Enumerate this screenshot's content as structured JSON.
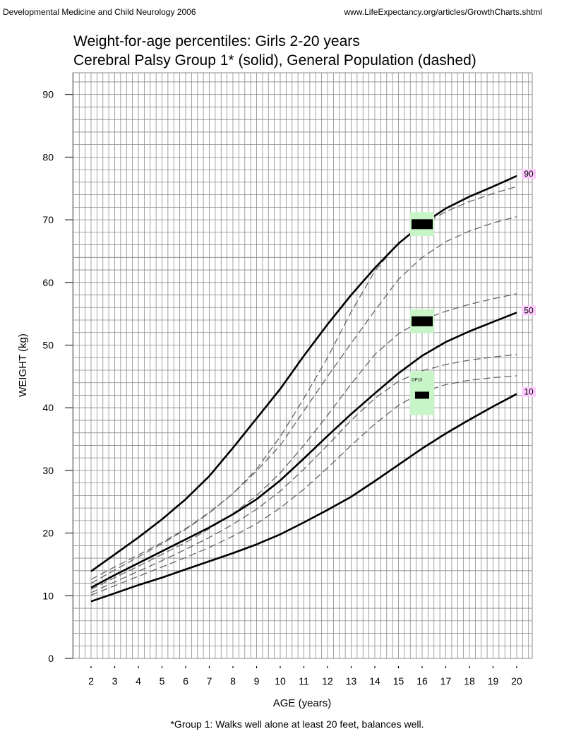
{
  "header": {
    "left": "Developmental Medicine and Child Neurology 2006",
    "right": "www.LifeExpectancy.org/articles/GrowthCharts.shtml"
  },
  "footnote": "*Group 1: Walks well alone at least 20 feet, balances well.",
  "chart_data": {
    "type": "line",
    "title": "Weight-for-age percentiles: Girls 2-20 years",
    "subtitle": "Cerebral Palsy Group 1* (solid), General Population (dashed)",
    "xlabel": "AGE (years)",
    "ylabel": "WEIGHT (kg)",
    "xlim": [
      2,
      20
    ],
    "ylim": [
      0,
      90
    ],
    "xticks": [
      2,
      3,
      4,
      5,
      6,
      7,
      8,
      9,
      10,
      11,
      12,
      13,
      14,
      15,
      16,
      17,
      18,
      19,
      20
    ],
    "yticks": [
      0,
      10,
      20,
      30,
      40,
      50,
      60,
      70,
      80,
      90
    ],
    "grid": true,
    "x": [
      2,
      3,
      4,
      5,
      6,
      7,
      8,
      9,
      10,
      11,
      12,
      13,
      14,
      15,
      16,
      17,
      18,
      19,
      20
    ],
    "series": [
      {
        "group": "Cerebral Palsy Group 1",
        "percentile": "90",
        "style": "solid",
        "values": [
          13.9,
          16.6,
          19.3,
          22.2,
          25.4,
          29.1,
          33.6,
          38.3,
          43.0,
          48.3,
          53.3,
          58.0,
          62.3,
          66.2,
          69.3,
          71.8,
          73.7,
          75.3,
          77.0
        ]
      },
      {
        "group": "Cerebral Palsy Group 1",
        "percentile": "50",
        "style": "solid",
        "values": [
          11.3,
          13.3,
          15.2,
          17.1,
          19.0,
          20.9,
          23.0,
          25.4,
          28.4,
          31.9,
          35.5,
          39.0,
          42.3,
          45.5,
          48.3,
          50.5,
          52.2,
          53.7,
          55.2
        ]
      },
      {
        "group": "Cerebral Palsy Group 1",
        "percentile": "10",
        "style": "solid",
        "values": [
          9.1,
          10.4,
          11.7,
          12.9,
          14.2,
          15.5,
          16.8,
          18.2,
          19.8,
          21.7,
          23.7,
          25.8,
          28.3,
          30.9,
          33.5,
          35.9,
          38.1,
          40.2,
          42.2
        ]
      },
      {
        "group": "General Population",
        "percentile": "90",
        "style": "dashed",
        "values": [
          12.6,
          14.6,
          16.5,
          18.5,
          20.7,
          23.3,
          26.3,
          29.9,
          34.0,
          39.5,
          45.0,
          50.3,
          55.5,
          60.5,
          64.0,
          66.5,
          68.2,
          69.5,
          70.5
        ]
      },
      {
        "group": "General Population",
        "percentile": "50",
        "style": "dashed",
        "values": [
          12.0,
          14.1,
          16.2,
          18.3,
          20.6,
          23.2,
          26.3,
          30.2,
          35.4,
          41.5,
          48.0,
          55.3,
          61.8,
          66.3,
          69.1,
          71.3,
          72.9,
          74.2,
          75.3
        ]
      },
      {
        "group": "General Population",
        "percentile": "dashed-3",
        "style": "dashed",
        "values": [
          11.0,
          12.9,
          14.7,
          16.6,
          18.5,
          20.7,
          23.1,
          26.0,
          29.6,
          34.0,
          38.8,
          43.8,
          48.5,
          51.8,
          54.0,
          55.4,
          56.5,
          57.4,
          58.2
        ]
      },
      {
        "group": "General Population",
        "percentile": "dashed-4",
        "style": "dashed",
        "values": [
          10.5,
          12.2,
          13.9,
          15.6,
          17.4,
          19.3,
          21.4,
          23.8,
          26.7,
          30.2,
          34.0,
          38.0,
          41.5,
          44.2,
          45.9,
          46.9,
          47.6,
          48.1,
          48.5
        ]
      },
      {
        "group": "General Population",
        "percentile": "dashed-5",
        "style": "dashed",
        "values": [
          10.1,
          11.6,
          13.1,
          14.6,
          16.1,
          17.7,
          19.5,
          21.5,
          24.0,
          27.0,
          30.4,
          34.0,
          37.4,
          40.4,
          42.5,
          43.7,
          44.4,
          44.8,
          45.1
        ]
      }
    ],
    "end_labels": [
      {
        "text": "90",
        "y": 77.0
      },
      {
        "text": "50",
        "y": 55.2
      },
      {
        "text": "10",
        "y": 42.2
      }
    ],
    "markers": [
      {
        "x": 16,
        "y": 69.3
      },
      {
        "x": 16,
        "y": 53.8
      },
      {
        "x": 16,
        "y": 42.0,
        "small_label": "GP10"
      }
    ],
    "colors": {
      "line": "#000000",
      "dashed": "#666666",
      "grid": "#8a8a8a",
      "marker_bg": "#c8f5c8",
      "label_bg": "#ffccff"
    }
  }
}
